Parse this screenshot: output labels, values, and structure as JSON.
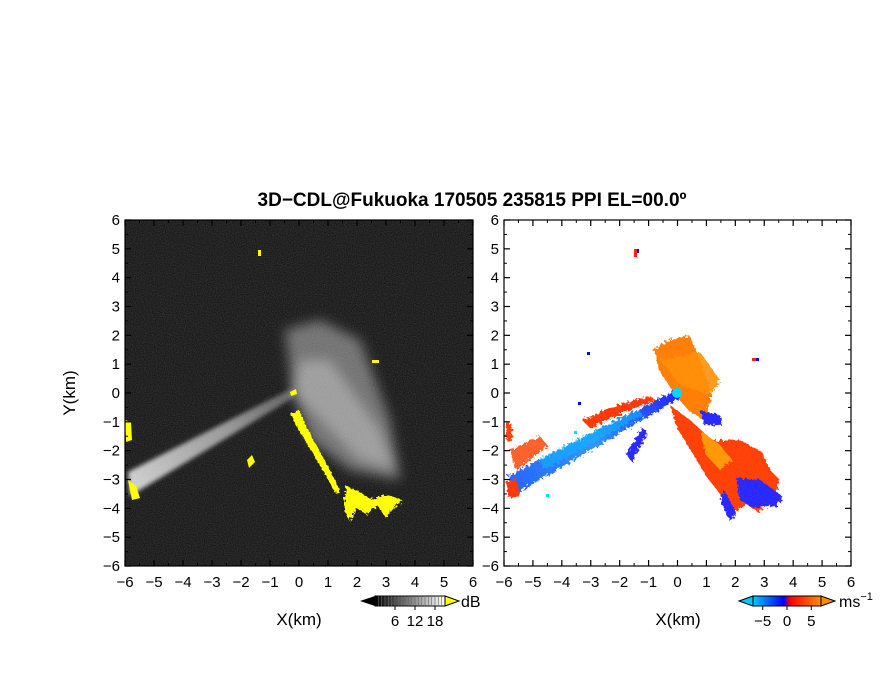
{
  "title": "3D−CDL@Fukuoka 170505 235815 PPI EL=00.0º",
  "chart_data": [
    {
      "type": "heatmap",
      "panel": "reflectivity",
      "xlabel": "X(km)",
      "ylabel": "Y(km)",
      "xlim": [
        -6,
        6
      ],
      "ylim": [
        -6,
        6
      ],
      "xticks": [
        "−6",
        "−5",
        "−4",
        "−3",
        "−2",
        "−1",
        "0",
        "1",
        "2",
        "3",
        "4",
        "5",
        "6"
      ],
      "yticks": [
        "6",
        "5",
        "4",
        "3",
        "2",
        "1",
        "0",
        "−1",
        "−2",
        "−3",
        "−4",
        "−5",
        "−6"
      ],
      "colorbar": {
        "unit": "dB",
        "ticks": [
          "6",
          "12",
          "18"
        ],
        "range": [
          0,
          21
        ],
        "colors": [
          "#000000",
          "#ffffff"
        ],
        "overflow_color": "#ffff00"
      },
      "highlight_color": "#ffff00",
      "grid": false
    },
    {
      "type": "heatmap",
      "panel": "doppler velocity",
      "xlabel": "X(km)",
      "ylabel": "",
      "xlim": [
        -6,
        6
      ],
      "ylim": [
        -6,
        6
      ],
      "xticks": [
        "−6",
        "−5",
        "−4",
        "−3",
        "−2",
        "−1",
        "0",
        "1",
        "2",
        "3",
        "4",
        "5",
        "6"
      ],
      "yticks": [
        "6",
        "5",
        "4",
        "3",
        "2",
        "1",
        "0",
        "−1",
        "−2",
        "−3",
        "−4",
        "−5",
        "−6"
      ],
      "colorbar": {
        "unit": "ms",
        "unit_exponent": "−1",
        "ticks": [
          "−5",
          "0",
          "5"
        ],
        "range": [
          -7,
          7
        ],
        "colors": [
          "#00c8ff",
          "#0000ff",
          "#ff0000",
          "#ff8c00"
        ]
      },
      "grid": false
    }
  ]
}
